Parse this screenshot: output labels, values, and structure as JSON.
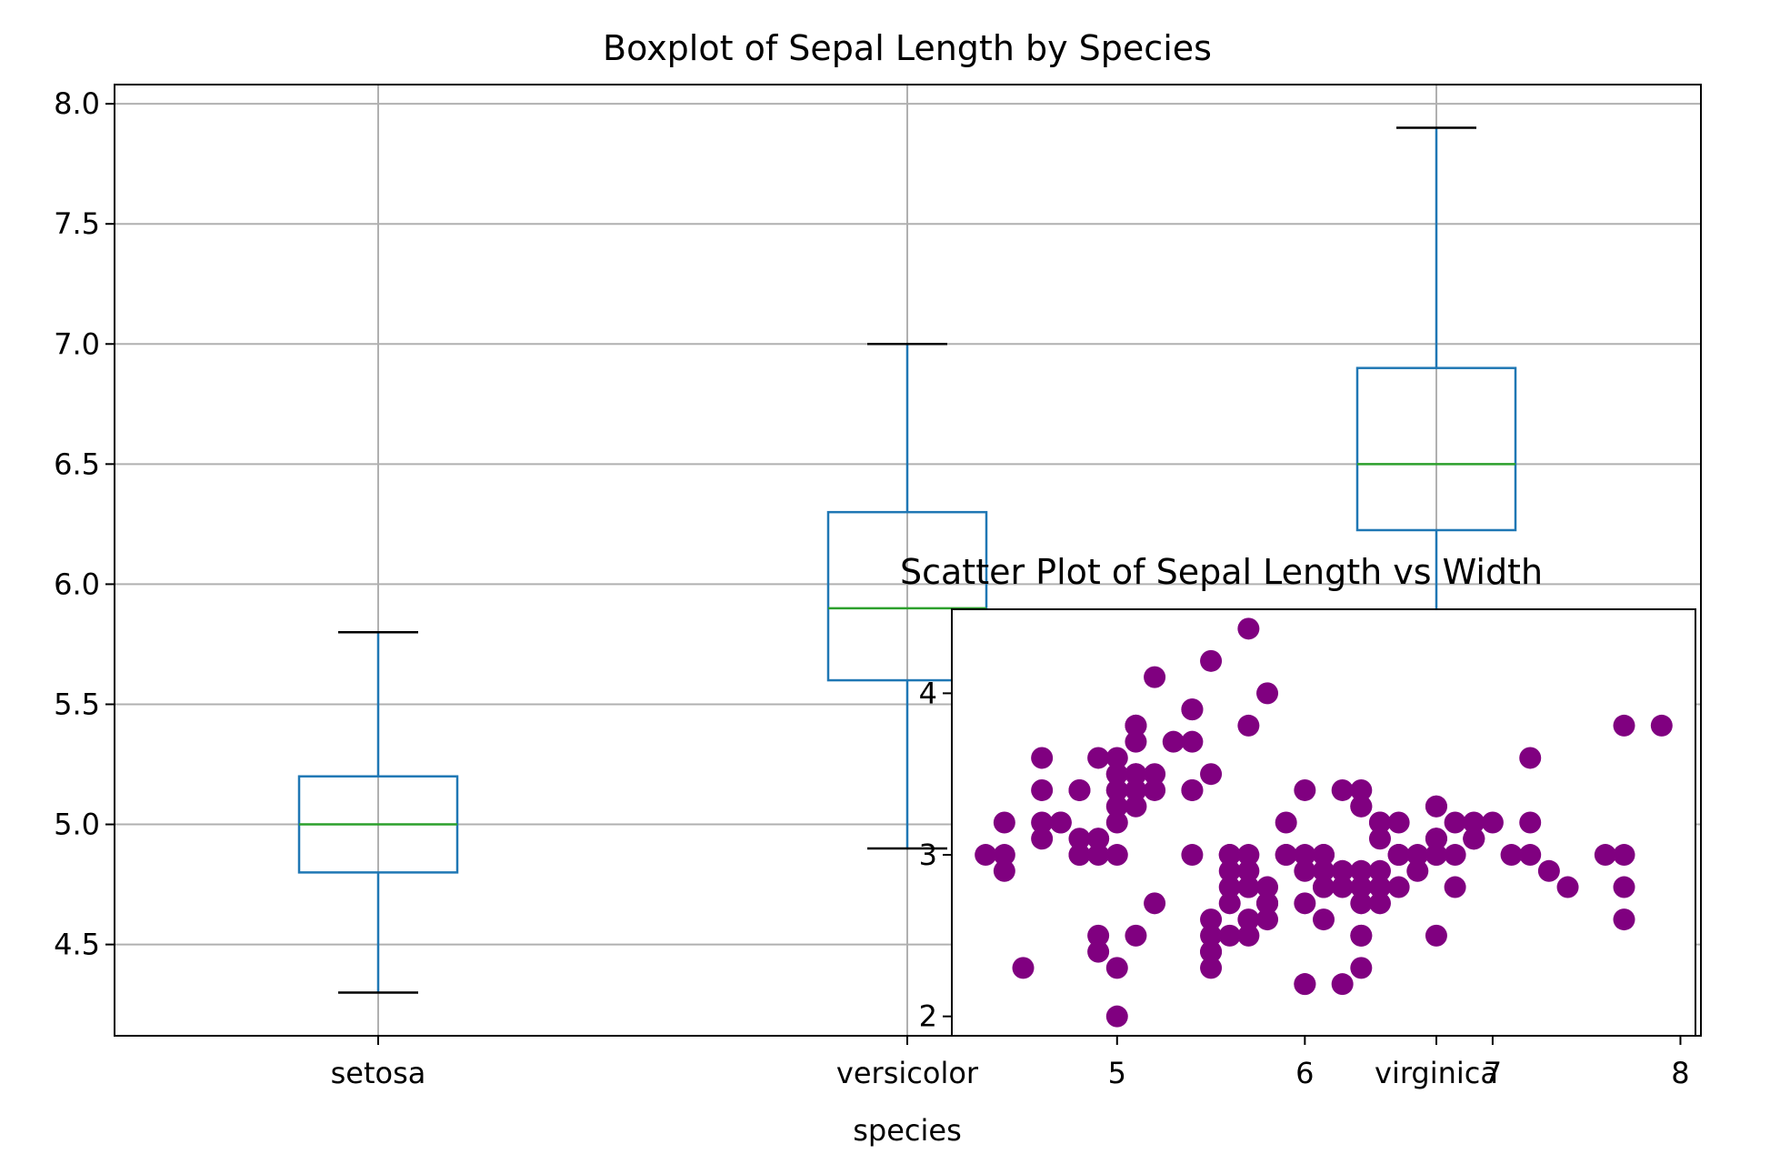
{
  "chart_data": [
    {
      "type": "box",
      "title": "Boxplot of Sepal Length by Species",
      "xlabel": "species",
      "ylabel": "",
      "grid": true,
      "categories": [
        "setosa",
        "versicolor",
        "virginica"
      ],
      "ylim": [
        4.12,
        8.08
      ],
      "yticks": [
        "4.5",
        "5.0",
        "5.5",
        "6.0",
        "6.5",
        "7.0",
        "7.5",
        "8.0"
      ],
      "boxes": [
        {
          "category": "setosa",
          "min": 4.3,
          "q1": 4.8,
          "median": 5.0,
          "q3": 5.2,
          "max": 5.8
        },
        {
          "category": "versicolor",
          "min": 4.9,
          "q1": 5.6,
          "median": 5.9,
          "q3": 6.3,
          "max": 7.0
        },
        {
          "category": "virginica",
          "min": 5.6,
          "q1": 6.225,
          "median": 6.5,
          "q3": 6.9,
          "max": 7.9
        }
      ],
      "colors": {
        "box": "#1f77b4",
        "median": "#2ca02c",
        "whisker_cap": "#000000",
        "grid": "#b0b0b0"
      }
    },
    {
      "type": "scatter",
      "title": "Scatter Plot of Sepal Length vs Width",
      "xlabel": "",
      "ylabel": "",
      "grid": false,
      "xlim": [
        4.12,
        8.08
      ],
      "ylim": [
        1.88,
        4.52
      ],
      "xticks": [
        "5",
        "6",
        "7",
        "8"
      ],
      "yticks": [
        "2",
        "3",
        "4"
      ],
      "color": "#800080",
      "points": [
        [
          5.1,
          3.5
        ],
        [
          4.9,
          3.0
        ],
        [
          4.7,
          3.2
        ],
        [
          4.6,
          3.1
        ],
        [
          5.0,
          3.6
        ],
        [
          5.4,
          3.9
        ],
        [
          4.6,
          3.4
        ],
        [
          5.0,
          3.4
        ],
        [
          4.4,
          2.9
        ],
        [
          4.9,
          3.1
        ],
        [
          5.4,
          3.7
        ],
        [
          4.8,
          3.4
        ],
        [
          4.8,
          3.0
        ],
        [
          4.3,
          3.0
        ],
        [
          5.8,
          4.0
        ],
        [
          5.7,
          4.4
        ],
        [
          5.4,
          3.9
        ],
        [
          5.1,
          3.5
        ],
        [
          5.7,
          3.8
        ],
        [
          5.1,
          3.8
        ],
        [
          5.4,
          3.4
        ],
        [
          5.1,
          3.7
        ],
        [
          4.6,
          3.6
        ],
        [
          5.1,
          3.3
        ],
        [
          4.8,
          3.4
        ],
        [
          5.0,
          3.0
        ],
        [
          5.0,
          3.4
        ],
        [
          5.2,
          3.5
        ],
        [
          5.2,
          3.4
        ],
        [
          4.7,
          3.2
        ],
        [
          4.8,
          3.1
        ],
        [
          5.4,
          3.4
        ],
        [
          5.2,
          4.1
        ],
        [
          5.5,
          4.2
        ],
        [
          4.9,
          3.1
        ],
        [
          5.0,
          3.2
        ],
        [
          5.5,
          3.5
        ],
        [
          4.9,
          3.6
        ],
        [
          4.4,
          3.0
        ],
        [
          5.1,
          3.4
        ],
        [
          5.0,
          3.5
        ],
        [
          4.5,
          2.3
        ],
        [
          4.4,
          3.2
        ],
        [
          5.0,
          3.5
        ],
        [
          5.1,
          3.8
        ],
        [
          4.8,
          3.0
        ],
        [
          5.1,
          3.8
        ],
        [
          4.6,
          3.2
        ],
        [
          5.3,
          3.7
        ],
        [
          5.0,
          3.3
        ],
        [
          7.0,
          3.2
        ],
        [
          6.4,
          3.2
        ],
        [
          6.9,
          3.1
        ],
        [
          5.5,
          2.3
        ],
        [
          6.5,
          2.8
        ],
        [
          5.7,
          2.8
        ],
        [
          6.3,
          3.3
        ],
        [
          4.9,
          2.4
        ],
        [
          6.6,
          2.9
        ],
        [
          5.2,
          2.7
        ],
        [
          5.0,
          2.0
        ],
        [
          5.9,
          3.0
        ],
        [
          6.0,
          2.2
        ],
        [
          6.1,
          2.9
        ],
        [
          5.6,
          2.9
        ],
        [
          6.7,
          3.1
        ],
        [
          5.6,
          3.0
        ],
        [
          5.8,
          2.7
        ],
        [
          6.2,
          2.2
        ],
        [
          5.6,
          2.5
        ],
        [
          5.9,
          3.2
        ],
        [
          6.1,
          2.8
        ],
        [
          6.3,
          2.5
        ],
        [
          6.1,
          2.8
        ],
        [
          6.4,
          2.9
        ],
        [
          6.6,
          3.0
        ],
        [
          6.8,
          2.8
        ],
        [
          6.7,
          3.0
        ],
        [
          6.0,
          2.9
        ],
        [
          5.7,
          2.6
        ],
        [
          5.5,
          2.4
        ],
        [
          5.5,
          2.4
        ],
        [
          5.8,
          2.7
        ],
        [
          6.0,
          2.7
        ],
        [
          5.4,
          3.0
        ],
        [
          6.0,
          3.4
        ],
        [
          6.7,
          3.1
        ],
        [
          6.3,
          2.3
        ],
        [
          5.6,
          3.0
        ],
        [
          5.5,
          2.5
        ],
        [
          5.5,
          2.6
        ],
        [
          6.1,
          3.0
        ],
        [
          5.8,
          2.6
        ],
        [
          5.0,
          2.3
        ],
        [
          5.6,
          2.7
        ],
        [
          5.7,
          3.0
        ],
        [
          5.7,
          2.9
        ],
        [
          6.2,
          2.9
        ],
        [
          5.1,
          2.5
        ],
        [
          5.7,
          2.8
        ],
        [
          6.3,
          3.3
        ],
        [
          5.8,
          2.7
        ],
        [
          7.1,
          3.0
        ],
        [
          6.3,
          2.9
        ],
        [
          6.5,
          3.0
        ],
        [
          7.6,
          3.0
        ],
        [
          4.9,
          2.5
        ],
        [
          7.3,
          2.9
        ],
        [
          6.7,
          2.5
        ],
        [
          7.2,
          3.6
        ],
        [
          6.5,
          3.2
        ],
        [
          6.4,
          2.7
        ],
        [
          6.8,
          3.0
        ],
        [
          5.7,
          2.5
        ],
        [
          5.8,
          2.8
        ],
        [
          6.4,
          3.2
        ],
        [
          6.5,
          3.0
        ],
        [
          7.7,
          3.8
        ],
        [
          7.7,
          2.6
        ],
        [
          6.0,
          2.2
        ],
        [
          6.9,
          3.2
        ],
        [
          5.6,
          2.8
        ],
        [
          7.7,
          2.8
        ],
        [
          6.3,
          2.7
        ],
        [
          6.7,
          3.3
        ],
        [
          7.2,
          3.2
        ],
        [
          6.2,
          2.8
        ],
        [
          6.1,
          3.0
        ],
        [
          6.4,
          2.8
        ],
        [
          7.2,
          3.0
        ],
        [
          7.4,
          2.8
        ],
        [
          7.9,
          3.8
        ],
        [
          6.4,
          2.8
        ],
        [
          6.3,
          2.8
        ],
        [
          6.1,
          2.6
        ],
        [
          7.7,
          3.0
        ],
        [
          6.3,
          3.4
        ],
        [
          6.4,
          3.1
        ],
        [
          6.0,
          3.0
        ],
        [
          6.9,
          3.1
        ],
        [
          6.7,
          3.1
        ],
        [
          6.9,
          3.1
        ],
        [
          5.8,
          2.7
        ],
        [
          6.8,
          3.2
        ],
        [
          6.7,
          3.3
        ],
        [
          6.7,
          3.0
        ],
        [
          6.3,
          2.5
        ],
        [
          6.5,
          3.0
        ],
        [
          6.2,
          3.4
        ],
        [
          5.9,
          3.0
        ]
      ]
    }
  ]
}
